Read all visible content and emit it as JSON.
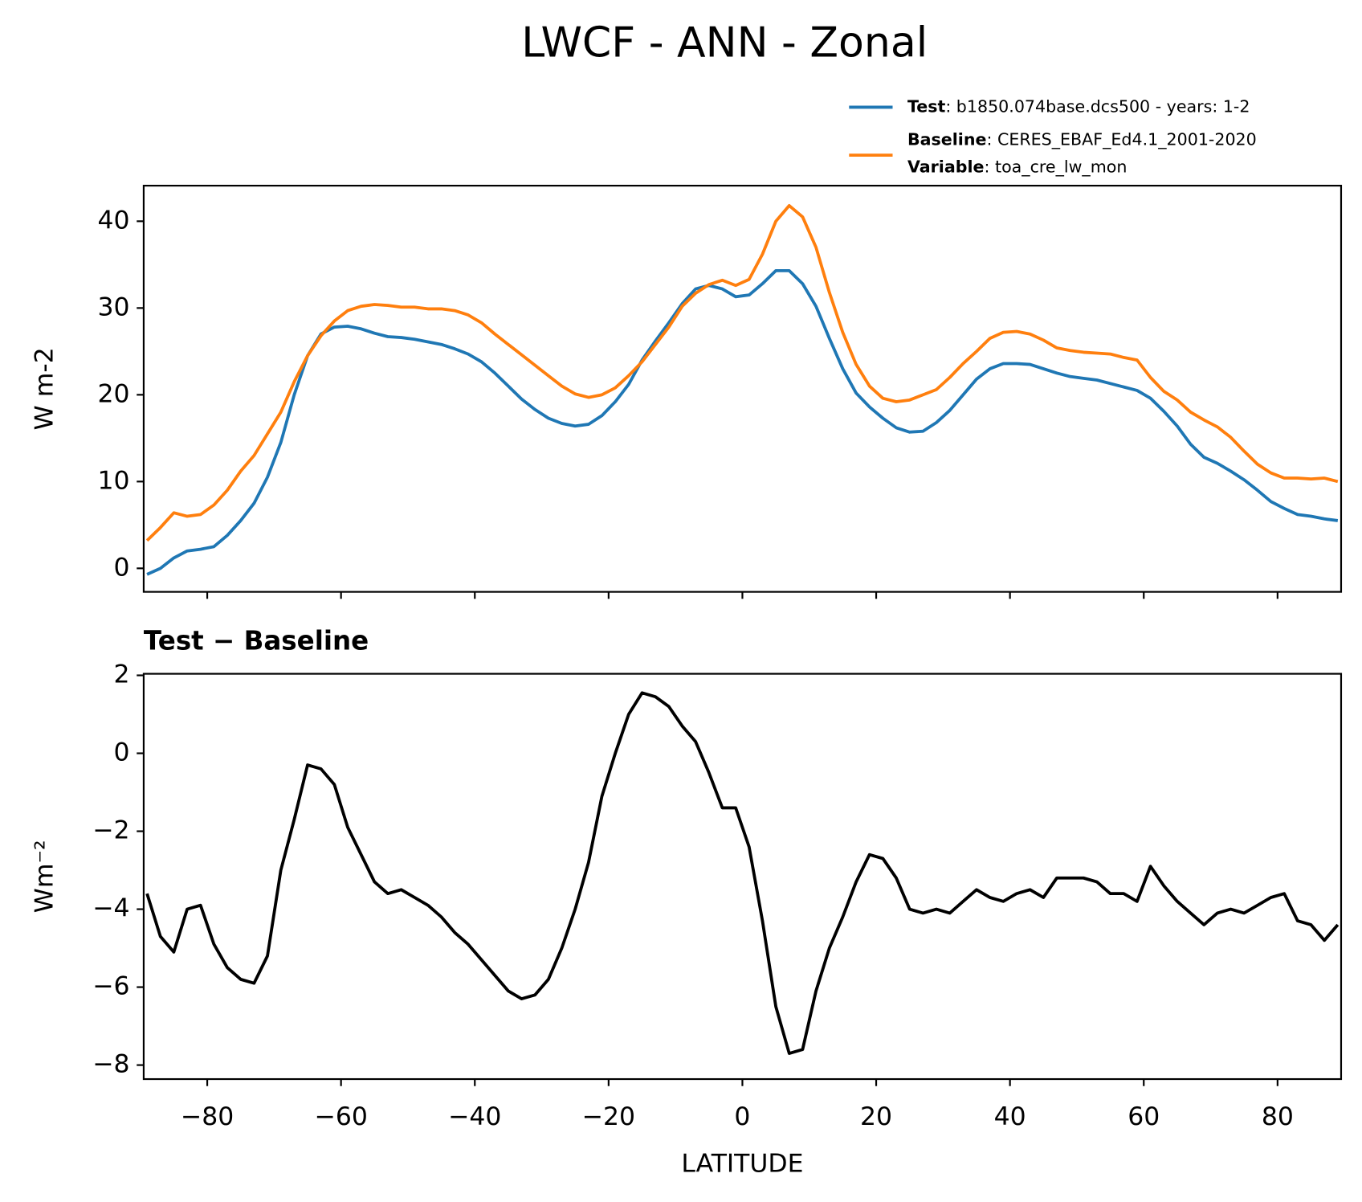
{
  "chart_data": [
    {
      "type": "line",
      "title": "LWCF - ANN - Zonal",
      "ylabel": "W m-2",
      "x": [
        -89,
        -87,
        -85,
        -83,
        -81,
        -79,
        -77,
        -75,
        -73,
        -71,
        -69,
        -67,
        -65,
        -63,
        -61,
        -59,
        -57,
        -55,
        -53,
        -51,
        -49,
        -47,
        -45,
        -43,
        -41,
        -39,
        -37,
        -35,
        -33,
        -31,
        -29,
        -27,
        -25,
        -23,
        -21,
        -19,
        -17,
        -15,
        -13,
        -11,
        -9,
        -7,
        -5,
        -3,
        -1,
        1,
        3,
        5,
        7,
        9,
        11,
        13,
        15,
        17,
        19,
        21,
        23,
        25,
        27,
        29,
        31,
        33,
        35,
        37,
        39,
        41,
        43,
        45,
        47,
        49,
        51,
        53,
        55,
        57,
        59,
        61,
        63,
        65,
        67,
        69,
        71,
        73,
        75,
        77,
        79,
        81,
        83,
        85,
        87,
        89
      ],
      "series": [
        {
          "name": "Test",
          "label": ": b1850.074base.dcs500 - years: 1-2",
          "color": "#1f77b4",
          "values": [
            -0.7,
            0.0,
            1.2,
            2.0,
            2.2,
            2.5,
            3.8,
            5.5,
            7.5,
            10.5,
            14.5,
            20,
            24.5,
            27,
            27.8,
            27.9,
            27.6,
            27.1,
            26.7,
            26.6,
            26.4,
            26.1,
            25.8,
            25.3,
            24.7,
            23.8,
            22.5,
            21,
            19.5,
            18.3,
            17.3,
            16.7,
            16.4,
            16.6,
            17.6,
            19.2,
            21.2,
            24,
            26.2,
            28.3,
            30.5,
            32.2,
            32.6,
            32.2,
            31.3,
            31.5,
            32.8,
            34.3,
            34.3,
            32.8,
            30.2,
            26.5,
            23,
            20.2,
            18.6,
            17.3,
            16.2,
            15.7,
            15.8,
            16.8,
            18.2,
            20,
            21.8,
            23.0,
            23.6,
            23.6,
            23.5,
            23.0,
            22.5,
            22.1,
            21.9,
            21.7,
            21.3,
            20.9,
            20.5,
            19.6,
            18.1,
            16.4,
            14.3,
            12.8,
            12.1,
            11.2,
            10.2,
            9.0,
            7.7,
            6.9,
            6.2,
            6.0,
            5.7,
            5.5
          ]
        },
        {
          "name": "Baseline",
          "label": ": CERES_EBAF_Ed4.1_2001-2020",
          "color": "#ff7f0e",
          "values": [
            3.2,
            4.7,
            6.4,
            6.0,
            6.2,
            7.3,
            9.0,
            11.2,
            13.0,
            15.5,
            18.0,
            21.5,
            24.5,
            26.8,
            28.5,
            29.7,
            30.2,
            30.4,
            30.3,
            30.1,
            30.1,
            29.9,
            29.9,
            29.7,
            29.2,
            28.3,
            27.0,
            25.8,
            24.6,
            23.4,
            22.2,
            21.0,
            20.1,
            19.7,
            20.0,
            20.8,
            22.2,
            23.8,
            25.8,
            27.8,
            30.2,
            31.7,
            32.7,
            33.2,
            32.6,
            33.3,
            36.2,
            40.0,
            41.8,
            40.5,
            37,
            31.8,
            27.2,
            23.5,
            21,
            19.6,
            19.2,
            19.4,
            20,
            20.6,
            22,
            23.6,
            25,
            26.5,
            27.2,
            27.3,
            27,
            26.3,
            25.4,
            25.1,
            24.9,
            24.8,
            24.7,
            24.3,
            24.0,
            22,
            20.4,
            19.4,
            18.0,
            17.1,
            16.3,
            15.1,
            13.5,
            12.0,
            11.0,
            10.4,
            10.4,
            10.3,
            10.4,
            10.0
          ]
        }
      ],
      "legend_extra": {
        "name": "Variable",
        "label": ": toa_cre_lw_mon"
      },
      "xlim": [
        -89.5,
        89.5
      ],
      "ylim": [
        -2.71,
        44.1
      ],
      "yticks": [
        0,
        10,
        20,
        30,
        40
      ]
    },
    {
      "type": "line",
      "title": "Test − Baseline",
      "xlabel": "LATITUDE",
      "ylabel": "Wm⁻²",
      "x": [
        -89,
        -87,
        -85,
        -83,
        -81,
        -79,
        -77,
        -75,
        -73,
        -71,
        -69,
        -67,
        -65,
        -63,
        -61,
        -59,
        -57,
        -55,
        -53,
        -51,
        -49,
        -47,
        -45,
        -43,
        -41,
        -39,
        -37,
        -35,
        -33,
        -31,
        -29,
        -27,
        -25,
        -23,
        -21,
        -19,
        -17,
        -15,
        -13,
        -11,
        -9,
        -7,
        -5,
        -3,
        -1,
        1,
        3,
        5,
        7,
        9,
        11,
        13,
        15,
        17,
        19,
        21,
        23,
        25,
        27,
        29,
        31,
        33,
        35,
        37,
        39,
        41,
        43,
        45,
        47,
        49,
        51,
        53,
        55,
        57,
        59,
        61,
        63,
        65,
        67,
        69,
        71,
        73,
        75,
        77,
        79,
        81,
        83,
        85,
        87,
        89
      ],
      "color": "#000000",
      "values": [
        -3.6,
        -4.7,
        -5.1,
        -4.0,
        -3.9,
        -4.9,
        -5.5,
        -5.8,
        -5.9,
        -5.2,
        -3.0,
        -1.7,
        -0.3,
        -0.4,
        -0.8,
        -1.9,
        -2.6,
        -3.3,
        -3.6,
        -3.5,
        -3.7,
        -3.9,
        -4.2,
        -4.6,
        -4.9,
        -5.3,
        -5.7,
        -6.1,
        -6.3,
        -6.2,
        -5.8,
        -5.0,
        -4.0,
        -2.8,
        -1.1,
        0.0,
        1.0,
        1.55,
        1.45,
        1.2,
        0.7,
        0.3,
        -0.5,
        -1.4,
        -1.4,
        -2.4,
        -4.3,
        -6.5,
        -7.7,
        -7.6,
        -6.1,
        -5.0,
        -4.2,
        -3.3,
        -2.6,
        -2.7,
        -3.2,
        -4.0,
        -4.1,
        -4.0,
        -4.1,
        -3.8,
        -3.5,
        -3.7,
        -3.8,
        -3.6,
        -3.5,
        -3.7,
        -3.2,
        -3.2,
        -3.2,
        -3.3,
        -3.6,
        -3.6,
        -3.8,
        -2.9,
        -3.4,
        -3.8,
        -4.1,
        -4.4,
        -4.1,
        -4.0,
        -4.1,
        -3.9,
        -3.7,
        -3.6,
        -4.3,
        -4.4,
        -4.8,
        -4.4
      ],
      "xlim": [
        -89.5,
        89.5
      ],
      "ylim": [
        -8.36,
        2.04
      ],
      "xticks": [
        {
          "value": -80,
          "label": "−80"
        },
        {
          "value": -60,
          "label": "−60"
        },
        {
          "value": -40,
          "label": "−40"
        },
        {
          "value": -20,
          "label": "−20"
        },
        0,
        20,
        40,
        60,
        80
      ],
      "yticks": [
        {
          "value": -8,
          "label": "−8"
        },
        {
          "value": -6,
          "label": "−6"
        },
        {
          "value": -4,
          "label": "−4"
        },
        {
          "value": -2,
          "label": "−2"
        },
        0,
        2
      ]
    }
  ]
}
